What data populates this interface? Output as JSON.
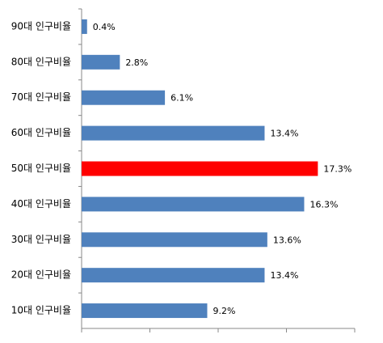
{
  "chart_data": {
    "type": "barh",
    "categories": [
      "90대 인구비율",
      "80대 인구비율",
      "70대 인구비율",
      "60대 인구비율",
      "50대 인구비율",
      "40대 인구비율",
      "30대 인구비율",
      "20대 인구비율",
      "10대 인구비율"
    ],
    "values": [
      0.4,
      2.8,
      6.1,
      13.4,
      17.3,
      16.3,
      13.6,
      13.4,
      9.2
    ],
    "value_labels": [
      "0.4%",
      "2.8%",
      "6.1%",
      "13.4%",
      "17.3%",
      "16.3%",
      "13.6%",
      "13.4%",
      "9.2%"
    ],
    "colors": [
      "#4f81bd",
      "#4f81bd",
      "#4f81bd",
      "#4f81bd",
      "#ff0000",
      "#4f81bd",
      "#4f81bd",
      "#4f81bd",
      "#4f81bd"
    ],
    "xlim": [
      0,
      20
    ],
    "xticks": [
      0,
      5,
      10,
      15,
      20
    ]
  }
}
